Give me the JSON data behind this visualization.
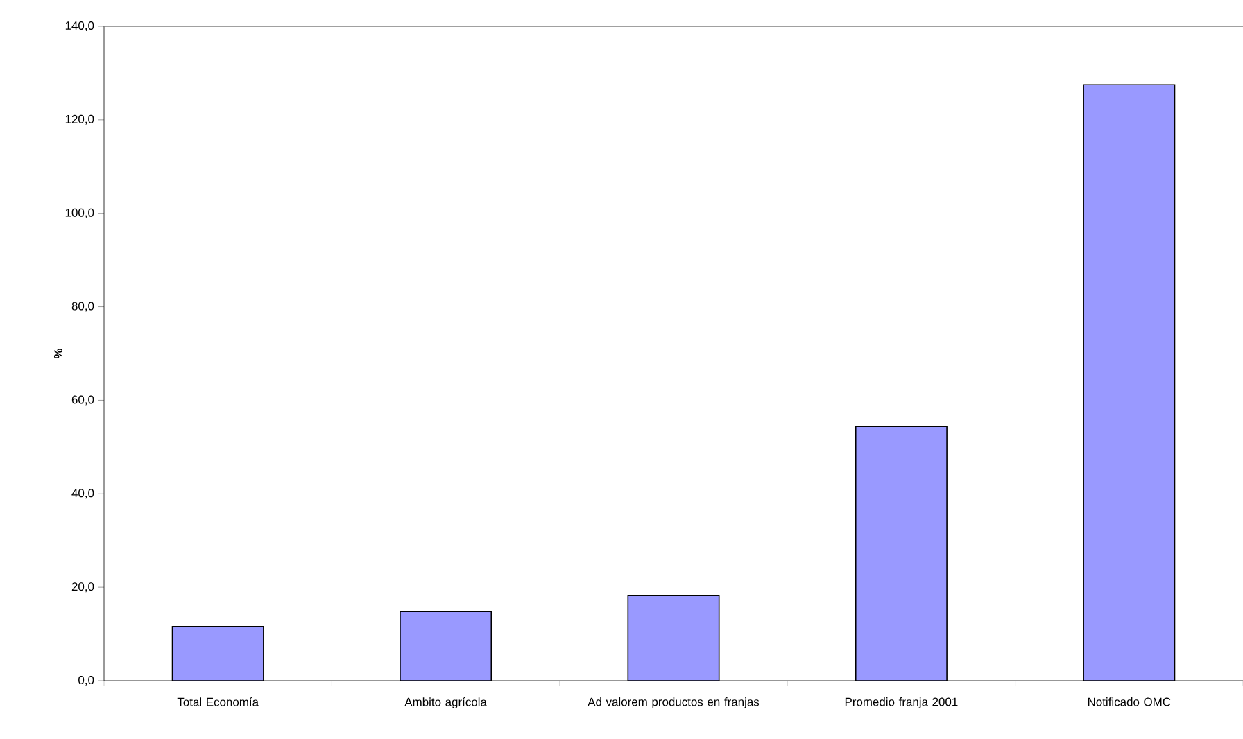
{
  "chart_data": {
    "type": "bar",
    "ylabel": "%",
    "categories": [
      "Total Economía",
      "Ambito agrícola",
      "Ad valorem productos en franjas",
      "Promedio franja 2001",
      "Notificado OMC"
    ],
    "values": [
      11.6,
      14.8,
      18.2,
      54.4,
      127.5
    ],
    "color": "#9999ff",
    "ylim": [
      0,
      140
    ],
    "yticks": [
      {
        "value": 0,
        "label": "0,0"
      },
      {
        "value": 20,
        "label": "20,0"
      },
      {
        "value": 40,
        "label": "40,0"
      },
      {
        "value": 60,
        "label": "60,0"
      },
      {
        "value": 80,
        "label": "80,0"
      },
      {
        "value": 100,
        "label": "100,0"
      },
      {
        "value": 120,
        "label": "120,0"
      },
      {
        "value": 140,
        "label": "140,0"
      }
    ],
    "grid": false
  }
}
